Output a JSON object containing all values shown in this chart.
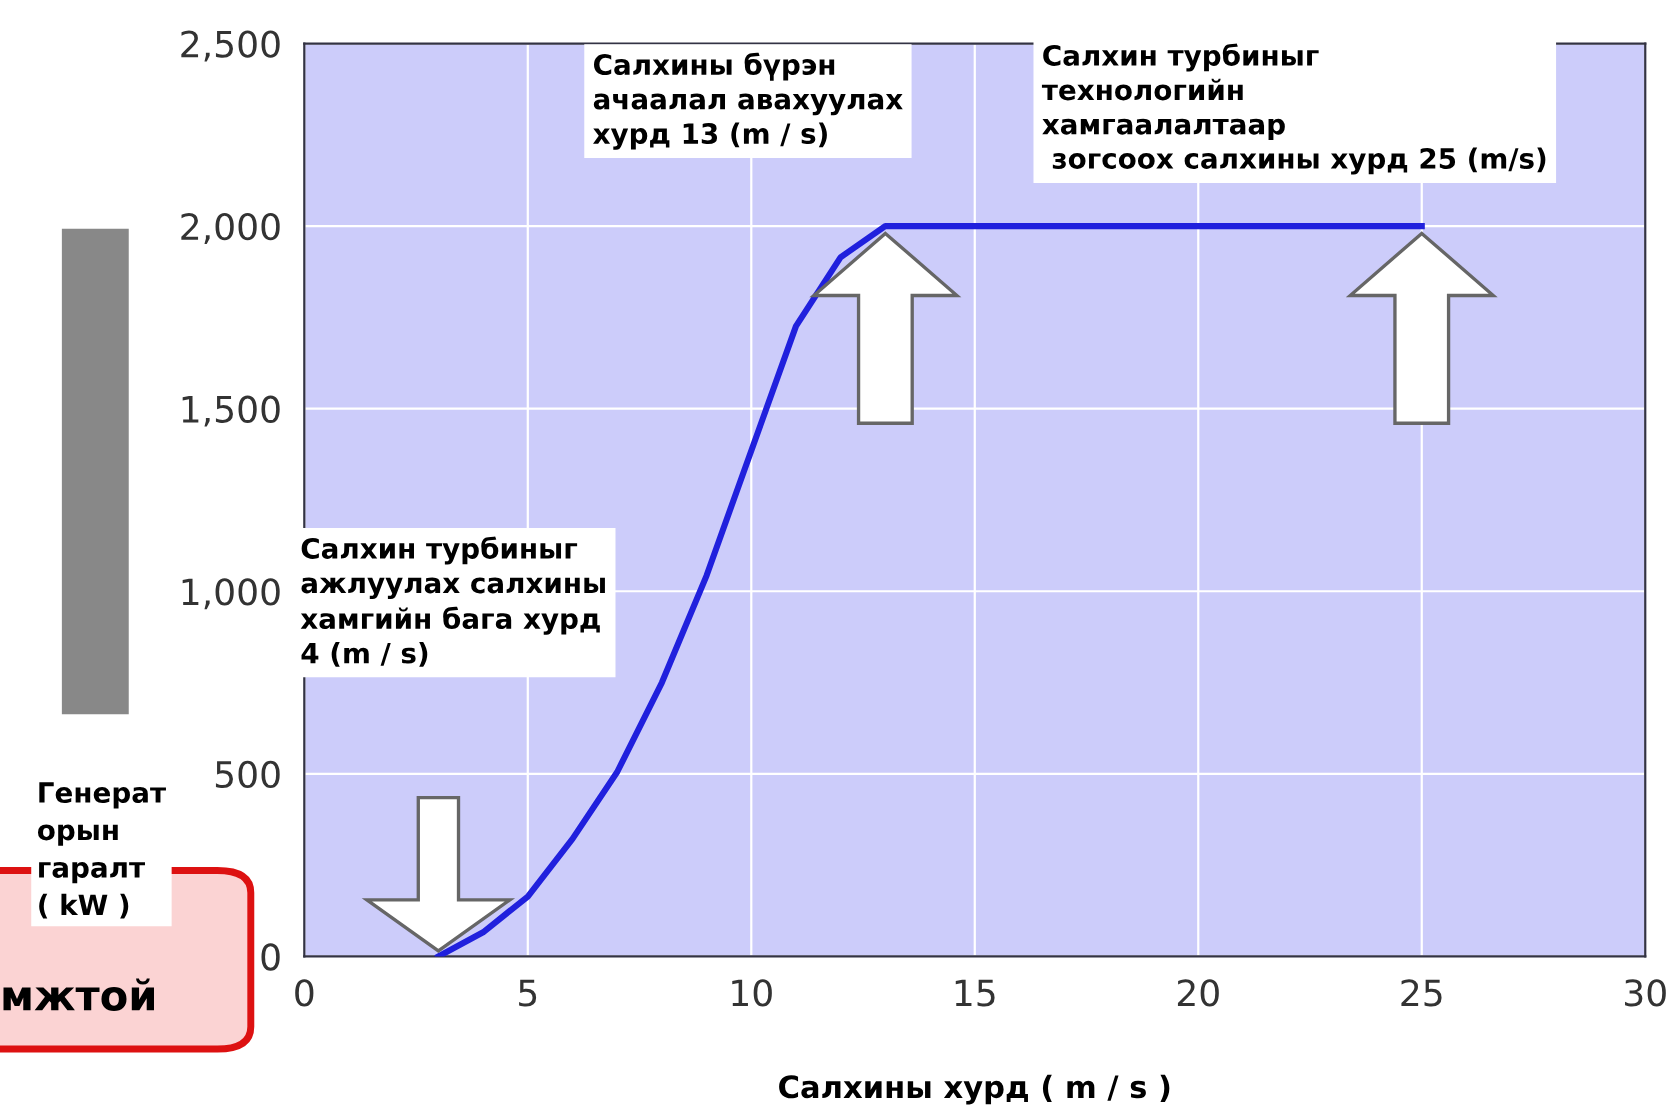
{
  "chart_data": {
    "type": "line",
    "xlabel": "Салхины хурд ( m / s )",
    "ylabel": "Генерат\nорын\nгаралт\n( kW )",
    "x": [
      3,
      4,
      5,
      6,
      7,
      8,
      9,
      10,
      11,
      12,
      13,
      25
    ],
    "series": [
      {
        "color": "#2020dd",
        "values": [
          0,
          66,
          164,
          322,
          505,
          750,
          1043,
          1385,
          1726,
          1915,
          2000,
          2000
        ]
      }
    ],
    "xlim": [
      0,
      30
    ],
    "xticks": [
      0,
      5,
      10,
      15,
      20,
      25,
      30
    ],
    "ylim": [
      0,
      2500
    ],
    "yticks": [
      {
        "value": 0,
        "label": "0"
      },
      {
        "value": 500,
        "label": "500"
      },
      {
        "value": 1000,
        "label": "1,000"
      },
      {
        "value": 1500,
        "label": "1,500"
      },
      {
        "value": 2000,
        "label": "2,000"
      },
      {
        "value": 2500,
        "label": "2,500"
      }
    ],
    "grid": true,
    "marker": "none",
    "line_style": "solid",
    "annotations": [
      "Салхин турбиныг\nажлуулах салхины\nхамгийн бага хурд\n4 (m / s)",
      {
        "text": "Салхины бүрэн\nачаалал авахуулах\nхурд 13 (m / s)",
        "x": 13,
        "y": 2000
      },
      {
        "text": "Салхин турбиныг\nтехнологийн\nхамгаалалтаар\n зогсоох салхины хурд 25 (m/s)",
        "x": 25,
        "y": 2000
      },
      "мжтой"
    ]
  }
}
